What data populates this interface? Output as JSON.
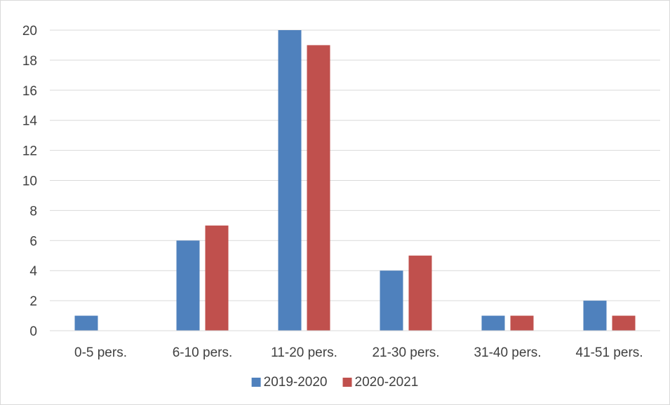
{
  "chart_data": {
    "type": "bar",
    "categories": [
      "0-5 pers.",
      "6-10 pers.",
      "11-20 pers.",
      "21-30 pers.",
      "31-40 pers.",
      "41-51 pers."
    ],
    "series": [
      {
        "name": "2019-2020",
        "color": "#4f81bd",
        "values": [
          1,
          6,
          20,
          4,
          1,
          2
        ]
      },
      {
        "name": "2020-2021",
        "color": "#c0504d",
        "values": [
          0,
          7,
          19,
          5,
          1,
          1
        ]
      }
    ],
    "ylim": [
      0,
      20
    ],
    "yticks": [
      0,
      2,
      4,
      6,
      8,
      10,
      12,
      14,
      16,
      18,
      20
    ],
    "title": "",
    "xlabel": "",
    "ylabel": "",
    "grid": true,
    "legend_position": "bottom"
  }
}
